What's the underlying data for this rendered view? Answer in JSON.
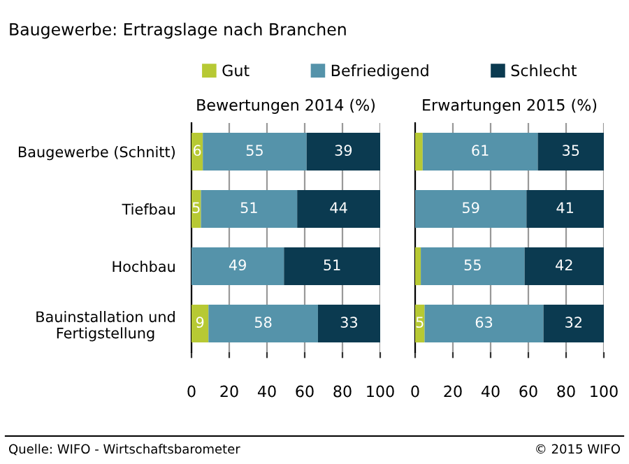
{
  "chart_data": [
    {
      "type": "bar",
      "orientation": "horizontal",
      "stacked": true,
      "title": "Baugewerbe: Ertragslage nach Branchen",
      "subtitle": "Bewertungen 2014 (%)",
      "categories": [
        "Baugewerbe (Schnitt)",
        "Tiefbau",
        "Hochbau",
        "Bauinstallation und\nFertigstellung"
      ],
      "series": [
        {
          "name": "Gut",
          "color": "#b7c934",
          "values": [
            6,
            5,
            0,
            9
          ],
          "value_labels": [
            "6",
            "5",
            null,
            "9"
          ]
        },
        {
          "name": "Befriedigend",
          "color": "#5593aa",
          "values": [
            55,
            51,
            49,
            58
          ],
          "value_labels": [
            "55",
            "51",
            "49",
            "58"
          ]
        },
        {
          "name": "Schlecht",
          "color": "#0b3a50",
          "values": [
            39,
            44,
            51,
            33
          ],
          "value_labels": [
            "39",
            "44",
            "51",
            "33"
          ]
        }
      ],
      "xlim": [
        0,
        100
      ],
      "xticks": [
        0,
        20,
        40,
        60,
        80,
        100
      ],
      "grid": "x",
      "legend": "top",
      "annotations": [
        "Quelle: WIFO - Wirtschaftsbarometer",
        "© 2015 WIFO"
      ]
    },
    {
      "type": "bar",
      "orientation": "horizontal",
      "stacked": true,
      "subtitle": "Erwartungen 2015 (%)",
      "categories": [
        "Baugewerbe (Schnitt)",
        "Tiefbau",
        "Hochbau",
        "Bauinstallation und\nFertigstellung"
      ],
      "series": [
        {
          "name": "Gut",
          "color": "#b7c934",
          "values": [
            4,
            0,
            3,
            5
          ],
          "value_labels": [
            null,
            null,
            null,
            "5"
          ]
        },
        {
          "name": "Befriedigend",
          "color": "#5593aa",
          "values": [
            61,
            59,
            55,
            63
          ],
          "value_labels": [
            "61",
            "59",
            "55",
            "63"
          ]
        },
        {
          "name": "Schlecht",
          "color": "#0b3a50",
          "values": [
            35,
            41,
            42,
            32
          ],
          "value_labels": [
            "35",
            "41",
            "42",
            "32"
          ]
        }
      ],
      "xlim": [
        0,
        100
      ],
      "xticks": [
        0,
        20,
        40,
        60,
        80,
        100
      ],
      "grid": "x",
      "tick_labels": "x"
    }
  ]
}
